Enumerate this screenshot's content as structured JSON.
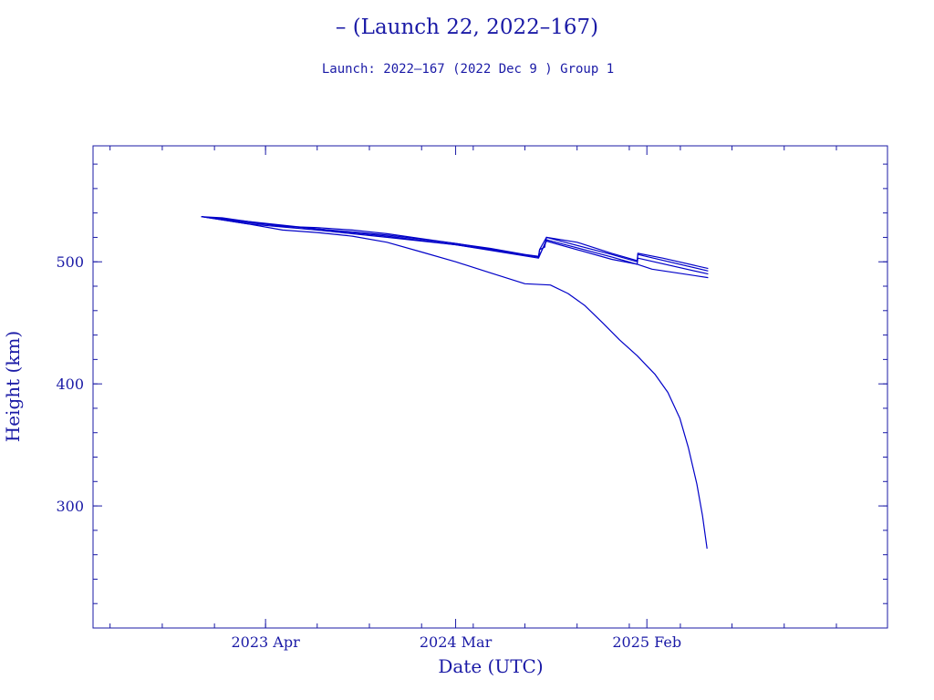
{
  "chart_data": {
    "type": "line",
    "title": "– (Launch 22, 2022–167)",
    "subtitle": "Launch: 2022–167  (2022 Dec  9 )  Group 1",
    "xlabel": "Date (UTC)",
    "ylabel": "Height (km)",
    "x_range": [
      "2022-06-01",
      "2026-04-01"
    ],
    "ylim": [
      200,
      595
    ],
    "x_ticks": [
      {
        "date": "2023-04-01",
        "label": "2023 Apr"
      },
      {
        "date": "2024-03-01",
        "label": "2024 Mar"
      },
      {
        "date": "2025-02-01",
        "label": "2025 Feb"
      }
    ],
    "y_ticks": [
      300,
      400,
      500
    ],
    "grid": false,
    "legend": "none",
    "colors": {
      "line": "#0000c8",
      "axes": "#1a1aa6",
      "text": "#1a1aa6"
    },
    "series": [
      {
        "points": [
          [
            "2022-12-09",
            537
          ],
          [
            "2023-01-15",
            536
          ],
          [
            "2023-03-01",
            533
          ],
          [
            "2023-05-01",
            529
          ],
          [
            "2023-07-01",
            528
          ],
          [
            "2023-09-01",
            526
          ],
          [
            "2023-11-01",
            523
          ],
          [
            "2024-01-01",
            519
          ],
          [
            "2024-03-01",
            515
          ],
          [
            "2024-05-01",
            511
          ],
          [
            "2024-07-01",
            506
          ],
          [
            "2024-07-25",
            504.5
          ],
          [
            "2024-07-27",
            510
          ],
          [
            "2024-08-05",
            512
          ],
          [
            "2024-08-08",
            520
          ],
          [
            "2024-10-01",
            516
          ],
          [
            "2024-12-01",
            507
          ],
          [
            "2025-01-15",
            501
          ],
          [
            "2025-01-16",
            507
          ],
          [
            "2025-03-01",
            503
          ],
          [
            "2025-05-20",
            494.5
          ]
        ]
      },
      {
        "points": [
          [
            "2022-12-09",
            537
          ],
          [
            "2023-03-01",
            533
          ],
          [
            "2023-07-01",
            527
          ],
          [
            "2023-11-01",
            522
          ],
          [
            "2024-03-01",
            515
          ],
          [
            "2024-07-25",
            504
          ],
          [
            "2024-07-27",
            510
          ],
          [
            "2024-08-08",
            520
          ],
          [
            "2024-12-01",
            506
          ],
          [
            "2025-01-15",
            500
          ],
          [
            "2025-01-16",
            506
          ],
          [
            "2025-05-20",
            492.5
          ]
        ]
      },
      {
        "points": [
          [
            "2022-12-09",
            537
          ],
          [
            "2023-03-01",
            532
          ],
          [
            "2023-07-01",
            527
          ],
          [
            "2023-11-01",
            521
          ],
          [
            "2024-03-01",
            514
          ],
          [
            "2024-07-25",
            503
          ],
          [
            "2024-08-08",
            518
          ],
          [
            "2024-12-01",
            504
          ],
          [
            "2025-01-15",
            498
          ],
          [
            "2025-01-16",
            503
          ],
          [
            "2025-05-20",
            490
          ]
        ]
      },
      {
        "points": [
          [
            "2022-12-09",
            537
          ],
          [
            "2023-03-01",
            531
          ],
          [
            "2023-07-01",
            526
          ],
          [
            "2023-11-01",
            520
          ],
          [
            "2024-03-01",
            514
          ],
          [
            "2024-07-25",
            504
          ],
          [
            "2024-08-08",
            517
          ],
          [
            "2024-12-01",
            502
          ],
          [
            "2025-01-15",
            498
          ],
          [
            "2025-02-10",
            494
          ],
          [
            "2025-05-20",
            487
          ]
        ]
      },
      {
        "points": [
          [
            "2022-12-09",
            537
          ],
          [
            "2023-03-01",
            531
          ],
          [
            "2023-05-01",
            526
          ],
          [
            "2023-07-01",
            524
          ],
          [
            "2023-09-01",
            521
          ],
          [
            "2023-11-01",
            516
          ],
          [
            "2024-01-01",
            508
          ],
          [
            "2024-03-01",
            500
          ],
          [
            "2024-05-01",
            491
          ],
          [
            "2024-07-01",
            482
          ],
          [
            "2024-08-15",
            481
          ],
          [
            "2024-09-15",
            474
          ],
          [
            "2024-10-15",
            464
          ],
          [
            "2024-11-15",
            450
          ],
          [
            "2024-12-15",
            436
          ],
          [
            "2025-01-15",
            423
          ],
          [
            "2025-02-15",
            408
          ],
          [
            "2025-03-10",
            393
          ],
          [
            "2025-03-31",
            372
          ],
          [
            "2025-04-15",
            348
          ],
          [
            "2025-04-30",
            318
          ],
          [
            "2025-05-10",
            292
          ],
          [
            "2025-05-18",
            265
          ]
        ]
      }
    ]
  }
}
